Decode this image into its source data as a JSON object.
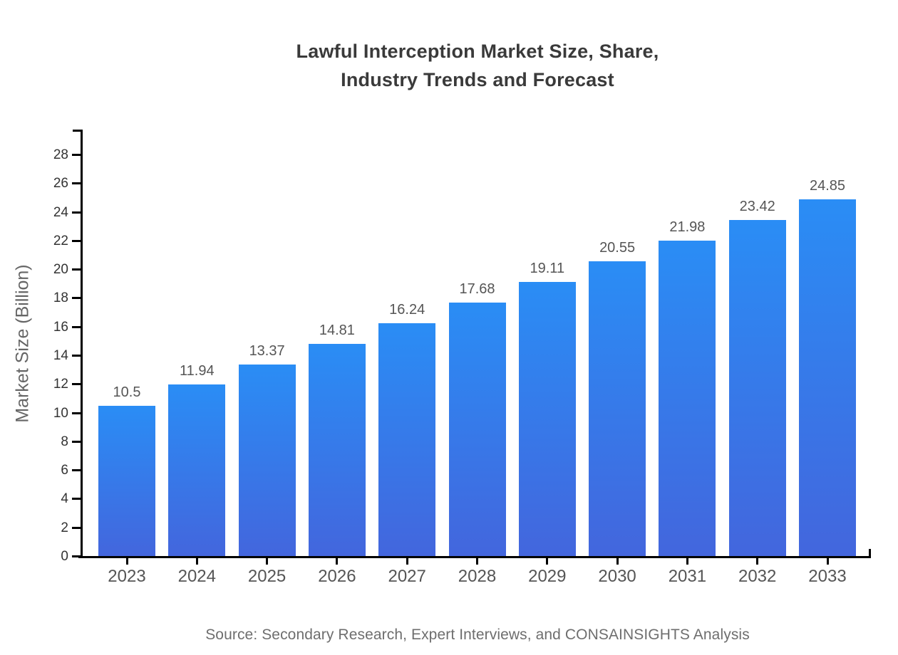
{
  "chart_data": {
    "type": "bar",
    "title_lines": [
      "Lawful Interception Market Size, Share,",
      "Industry Trends and Forecast"
    ],
    "ylabel": "Market Size (Billion)",
    "xlabel": "",
    "categories": [
      "2023",
      "2024",
      "2025",
      "2026",
      "2027",
      "2028",
      "2029",
      "2030",
      "2031",
      "2032",
      "2033"
    ],
    "values": [
      10.5,
      11.94,
      13.37,
      14.81,
      16.24,
      17.68,
      19.11,
      20.55,
      21.98,
      23.42,
      24.85
    ],
    "value_labels": [
      "10.5",
      "11.94",
      "13.37",
      "14.81",
      "16.24",
      "17.68",
      "19.11",
      "20.55",
      "21.98",
      "23.42",
      "24.85"
    ],
    "ylim": [
      0,
      28
    ],
    "ytick_step": 2,
    "ytick_labels": [
      "0",
      "2",
      "4",
      "6",
      "8",
      "10",
      "12",
      "14",
      "16",
      "18",
      "20",
      "22",
      "24",
      "26",
      "28"
    ],
    "grid": false,
    "legend": "none",
    "source": "Source: Secondary Research, Expert Interviews, and CONSAINSIGHTS Analysis",
    "colors": {
      "bar_gradient_top": "#2a8df5",
      "bar_gradient_bottom": "#4366dd",
      "axis": "#000000",
      "title": "#3a3a3a",
      "ytick_label": "#333333",
      "xtick_label": "#555555",
      "value_label": "#555555",
      "axis_label": "#666666",
      "source": "#6e6e6e",
      "background": "#ffffff"
    }
  }
}
